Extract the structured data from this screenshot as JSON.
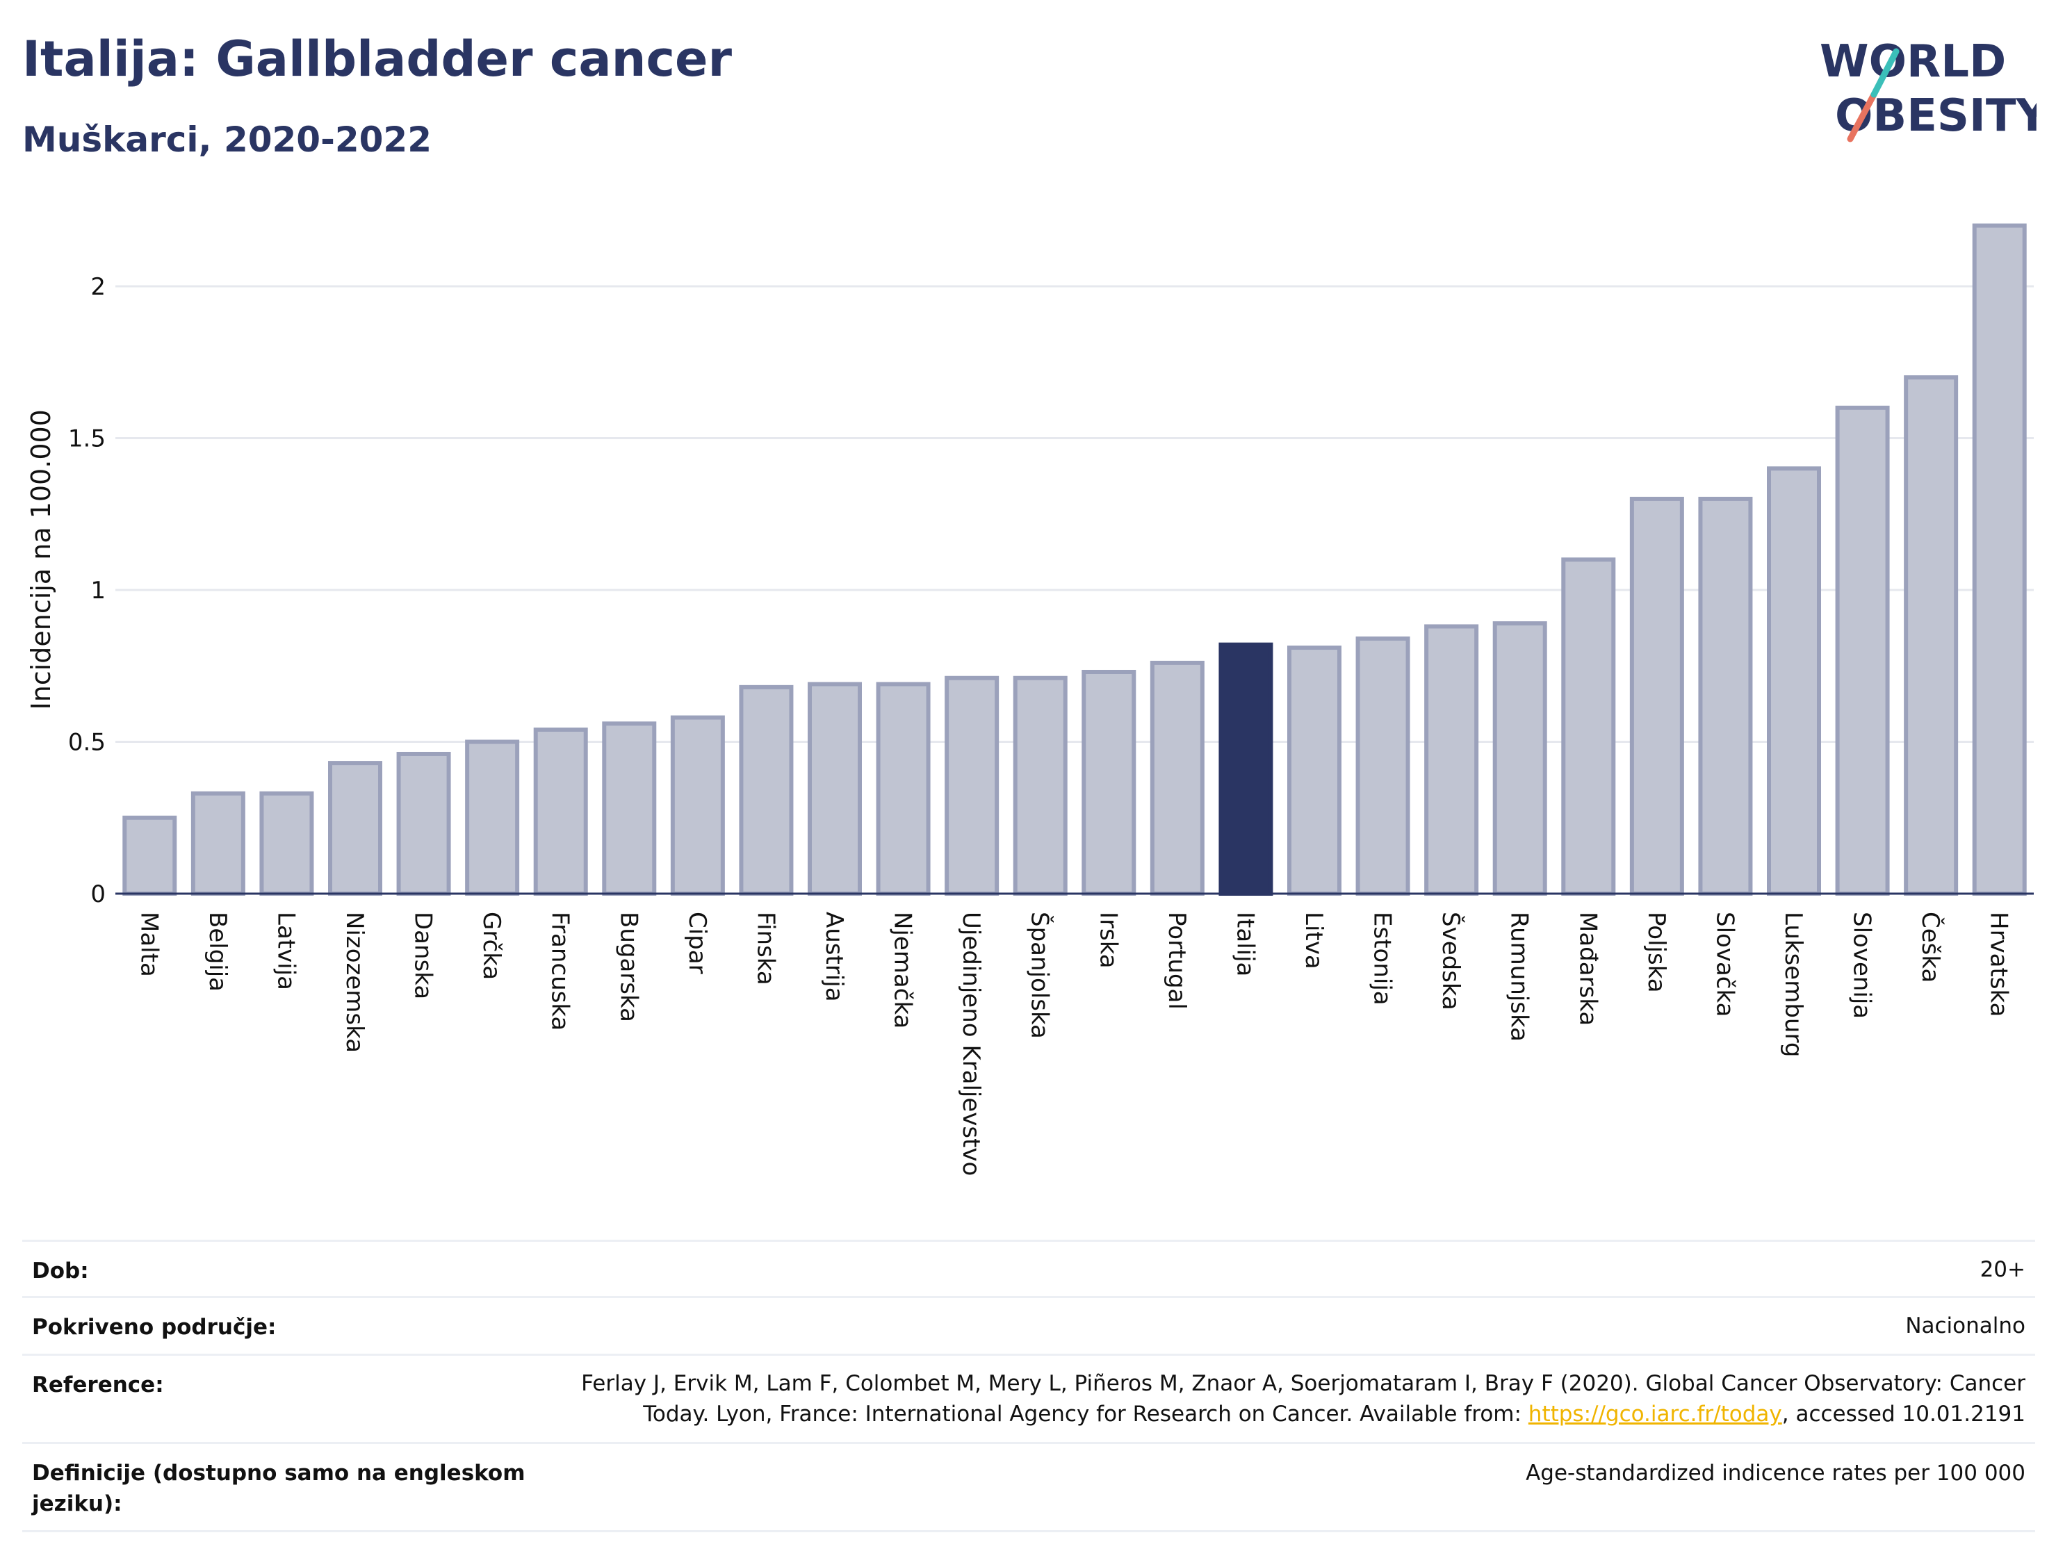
{
  "header": {
    "title": "Italija: Gallbladder cancer",
    "subtitle": "Muškarci, 2020-2022",
    "logo_line1": "WORLD",
    "logo_line2": "OBESITY"
  },
  "chart_data": {
    "type": "bar",
    "ylabel": "Incidencija na 100.000",
    "ylim": [
      0,
      2.25
    ],
    "yticks": [
      0,
      0.5,
      1,
      1.5,
      2
    ],
    "ytick_labels": [
      "0",
      "0.5",
      "1",
      "1.5",
      "2"
    ],
    "grid": true,
    "highlight": "Italija",
    "categories": [
      "Malta",
      "Belgija",
      "Latvija",
      "Nizozemska",
      "Danska",
      "Grčka",
      "Francuska",
      "Bugarska",
      "Cipar",
      "Finska",
      "Austrija",
      "Njemačka",
      "Ujedinjeno Kraljevstvo",
      "Španjolska",
      "Irska",
      "Portugal",
      "Italija",
      "Litva",
      "Estonija",
      "Švedska",
      "Rumunjska",
      "Mađarska",
      "Poljska",
      "Slovačka",
      "Luksemburg",
      "Slovenija",
      "Češka",
      "Hrvatska"
    ],
    "values": [
      0.25,
      0.33,
      0.33,
      0.43,
      0.46,
      0.5,
      0.54,
      0.56,
      0.58,
      0.68,
      0.69,
      0.69,
      0.71,
      0.71,
      0.73,
      0.76,
      0.82,
      0.81,
      0.84,
      0.88,
      0.89,
      1.1,
      1.3,
      1.3,
      1.4,
      1.6,
      1.7,
      2.2
    ],
    "colors": {
      "bar": "#c0c4d2",
      "bar_border": "#9ba1bb",
      "highlight": "#2a3563",
      "grid": "#e6e8ee",
      "axis": "#2a3563"
    }
  },
  "footer": {
    "rows": [
      {
        "label": "Dob:",
        "value": "20+"
      },
      {
        "label": "Pokriveno područje:",
        "value": "Nacionalno"
      },
      {
        "label": "Reference:",
        "value_line1": "Ferlay J, Ervik M, Lam F, Colombet M, Mery L, Piñeros M, Znaor A, Soerjomataram I, Bray F (2020). Global Cancer Observatory: Cancer",
        "value_line2_pre": "Today. Lyon, France: International Agency for Research on Cancer. Available from: ",
        "link": "https://gco.iarc.fr/today",
        "value_line2_post": ", accessed 10.01.2191"
      },
      {
        "label_line1": "Definicije (dostupno samo na engleskom",
        "label_line2": "jeziku):",
        "value": "Age-standardized indicence rates per 100 000"
      }
    ]
  }
}
